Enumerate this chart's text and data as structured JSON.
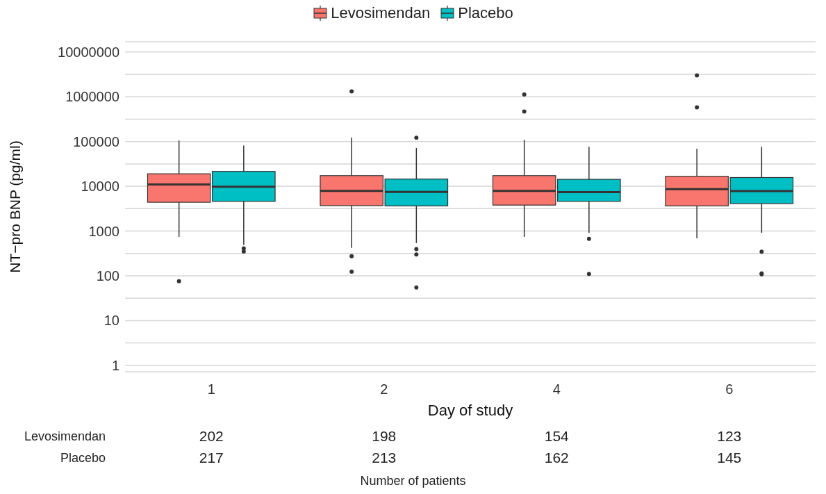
{
  "chart_data": {
    "type": "box",
    "categories": [
      "1",
      "2",
      "4",
      "6"
    ],
    "xlabel": "Day of study",
    "ylabel": "NT−pro BNP (pg/ml)",
    "log": "y",
    "ylim": [
      0.72,
      17000000
    ],
    "yticks": [
      1,
      {
        "value": 3.162,
        "label": null
      },
      10,
      {
        "value": 31.62,
        "label": null
      },
      100,
      {
        "value": 316.2,
        "label": null
      },
      1000,
      {
        "value": 3162,
        "label": null
      },
      10000,
      {
        "value": 31620,
        "label": null
      },
      100000,
      {
        "value": 316200,
        "label": null
      },
      1000000,
      {
        "value": 3162000,
        "label": null
      },
      10000000
    ],
    "grid": "y",
    "legend": "top",
    "series": [
      {
        "name": "Levosimendan",
        "color": "#f8766d",
        "boxes": [
          {
            "low": 740,
            "q1": 4400,
            "median": 11000,
            "q3": 19000,
            "high": 105000,
            "outliers": [
              76
            ]
          },
          {
            "low": 420,
            "q1": 3700,
            "median": 7900,
            "q3": 17300,
            "high": 123000,
            "outliers": [
              1320000,
              275,
              124
            ]
          },
          {
            "low": 740,
            "q1": 3800,
            "median": 7900,
            "q3": 17300,
            "high": 109000,
            "outliers": [
              1120000,
              470000
            ]
          },
          {
            "low": 690,
            "q1": 3650,
            "median": 8600,
            "q3": 16700,
            "high": 69000,
            "outliers": [
              3000000,
              580000
            ]
          }
        ]
      },
      {
        "name": "Placebo",
        "color": "#00bfc4",
        "boxes": [
          {
            "low": 490,
            "q1": 4600,
            "median": 9800,
            "q3": 21500,
            "high": 81000,
            "outliers": [
              410,
              350
            ]
          },
          {
            "low": 540,
            "q1": 3650,
            "median": 7500,
            "q3": 14500,
            "high": 72000,
            "outliers": [
              122000,
              394,
              300,
              55
            ]
          },
          {
            "low": 910,
            "q1": 4600,
            "median": 7400,
            "q3": 14300,
            "high": 76000,
            "outliers": [
              670,
              110
            ]
          },
          {
            "low": 910,
            "q1": 4100,
            "median": 7800,
            "q3": 15700,
            "high": 76000,
            "outliers": [
              345,
              113,
              108
            ]
          }
        ]
      }
    ],
    "annotations": [
      "Levosimendan",
      "202",
      "198",
      "154",
      "123",
      "Placebo",
      "217",
      "213",
      "162",
      "145",
      "Number of patients"
    ]
  }
}
